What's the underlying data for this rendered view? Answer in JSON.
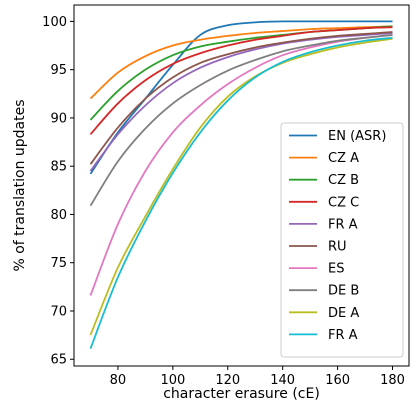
{
  "chart_data": {
    "type": "line",
    "title": "",
    "xlabel": "character erasure (cE)",
    "ylabel": "% of translation updates",
    "xlim": [
      64,
      186
    ],
    "ylim": [
      64.3,
      101.7
    ],
    "xticks": [
      80,
      100,
      120,
      140,
      160,
      180
    ],
    "yticks": [
      65,
      70,
      75,
      80,
      85,
      90,
      95,
      100
    ],
    "grid": false,
    "legend_position": "lower-right",
    "series": [
      {
        "name": "EN (ASR)",
        "color": "#1f77b4",
        "x": [
          70,
          80,
          90,
          100,
          110,
          120,
          130,
          140,
          150,
          160,
          170,
          180
        ],
        "y": [
          84.2,
          88.5,
          92.0,
          95.5,
          98.6,
          99.6,
          99.9,
          100.0,
          100.0,
          100.0,
          100.0,
          100.0
        ]
      },
      {
        "name": "CZ A",
        "color": "#ff7f0e",
        "x": [
          70,
          80,
          90,
          100,
          110,
          120,
          130,
          140,
          150,
          160,
          170,
          180
        ],
        "y": [
          92.0,
          94.7,
          96.4,
          97.5,
          98.1,
          98.5,
          98.8,
          99.0,
          99.2,
          99.3,
          99.4,
          99.5
        ]
      },
      {
        "name": "CZ B",
        "color": "#2ca02c",
        "x": [
          70,
          80,
          90,
          100,
          110,
          120,
          130,
          140,
          150,
          160,
          170,
          180
        ],
        "y": [
          89.8,
          92.8,
          95.0,
          96.5,
          97.4,
          97.9,
          98.3,
          98.6,
          98.9,
          99.1,
          99.3,
          99.5
        ]
      },
      {
        "name": "CZ C",
        "color": "#d62728",
        "x": [
          70,
          80,
          90,
          100,
          110,
          120,
          130,
          140,
          150,
          160,
          170,
          180
        ],
        "y": [
          88.3,
          91.5,
          93.9,
          95.6,
          96.7,
          97.5,
          98.1,
          98.5,
          98.9,
          99.1,
          99.3,
          99.4
        ]
      },
      {
        "name": "FR A",
        "color": "#9467bd",
        "x": [
          70,
          80,
          90,
          100,
          110,
          120,
          130,
          140,
          150,
          160,
          170,
          180
        ],
        "y": [
          84.5,
          88.3,
          91.3,
          93.6,
          95.2,
          96.3,
          97.1,
          97.7,
          98.1,
          98.4,
          98.6,
          98.8
        ]
      },
      {
        "name": "RU",
        "color": "#8c564b",
        "x": [
          70,
          80,
          90,
          100,
          110,
          120,
          130,
          140,
          150,
          160,
          170,
          180
        ],
        "y": [
          85.2,
          89.0,
          92.0,
          94.2,
          95.7,
          96.6,
          97.3,
          97.8,
          98.2,
          98.5,
          98.7,
          98.9
        ]
      },
      {
        "name": "ES",
        "color": "#e377c2",
        "x": [
          70,
          80,
          90,
          100,
          110,
          120,
          130,
          140,
          150,
          160,
          170,
          180
        ],
        "y": [
          71.6,
          79.0,
          84.5,
          88.5,
          91.3,
          93.5,
          95.2,
          96.5,
          97.3,
          97.9,
          98.3,
          98.6
        ]
      },
      {
        "name": "DE B",
        "color": "#7f7f7f",
        "x": [
          70,
          80,
          90,
          100,
          110,
          120,
          130,
          140,
          150,
          160,
          170,
          180
        ],
        "y": [
          80.9,
          85.5,
          88.9,
          91.5,
          93.4,
          94.9,
          96.0,
          96.9,
          97.5,
          98.0,
          98.3,
          98.6
        ]
      },
      {
        "name": "DE A",
        "color": "#bcbd22",
        "x": [
          70,
          80,
          90,
          100,
          110,
          120,
          130,
          140,
          150,
          160,
          170,
          180
        ],
        "y": [
          67.5,
          74.5,
          79.8,
          84.7,
          89.0,
          92.2,
          94.3,
          95.7,
          96.6,
          97.3,
          97.8,
          98.2
        ]
      },
      {
        "name": "FR A",
        "color": "#17becf",
        "x": [
          70,
          80,
          90,
          100,
          110,
          120,
          130,
          140,
          150,
          160,
          170,
          180
        ],
        "y": [
          66.1,
          73.5,
          79.3,
          84.3,
          88.5,
          91.8,
          94.2,
          95.8,
          96.8,
          97.5,
          98.0,
          98.3
        ]
      }
    ]
  }
}
